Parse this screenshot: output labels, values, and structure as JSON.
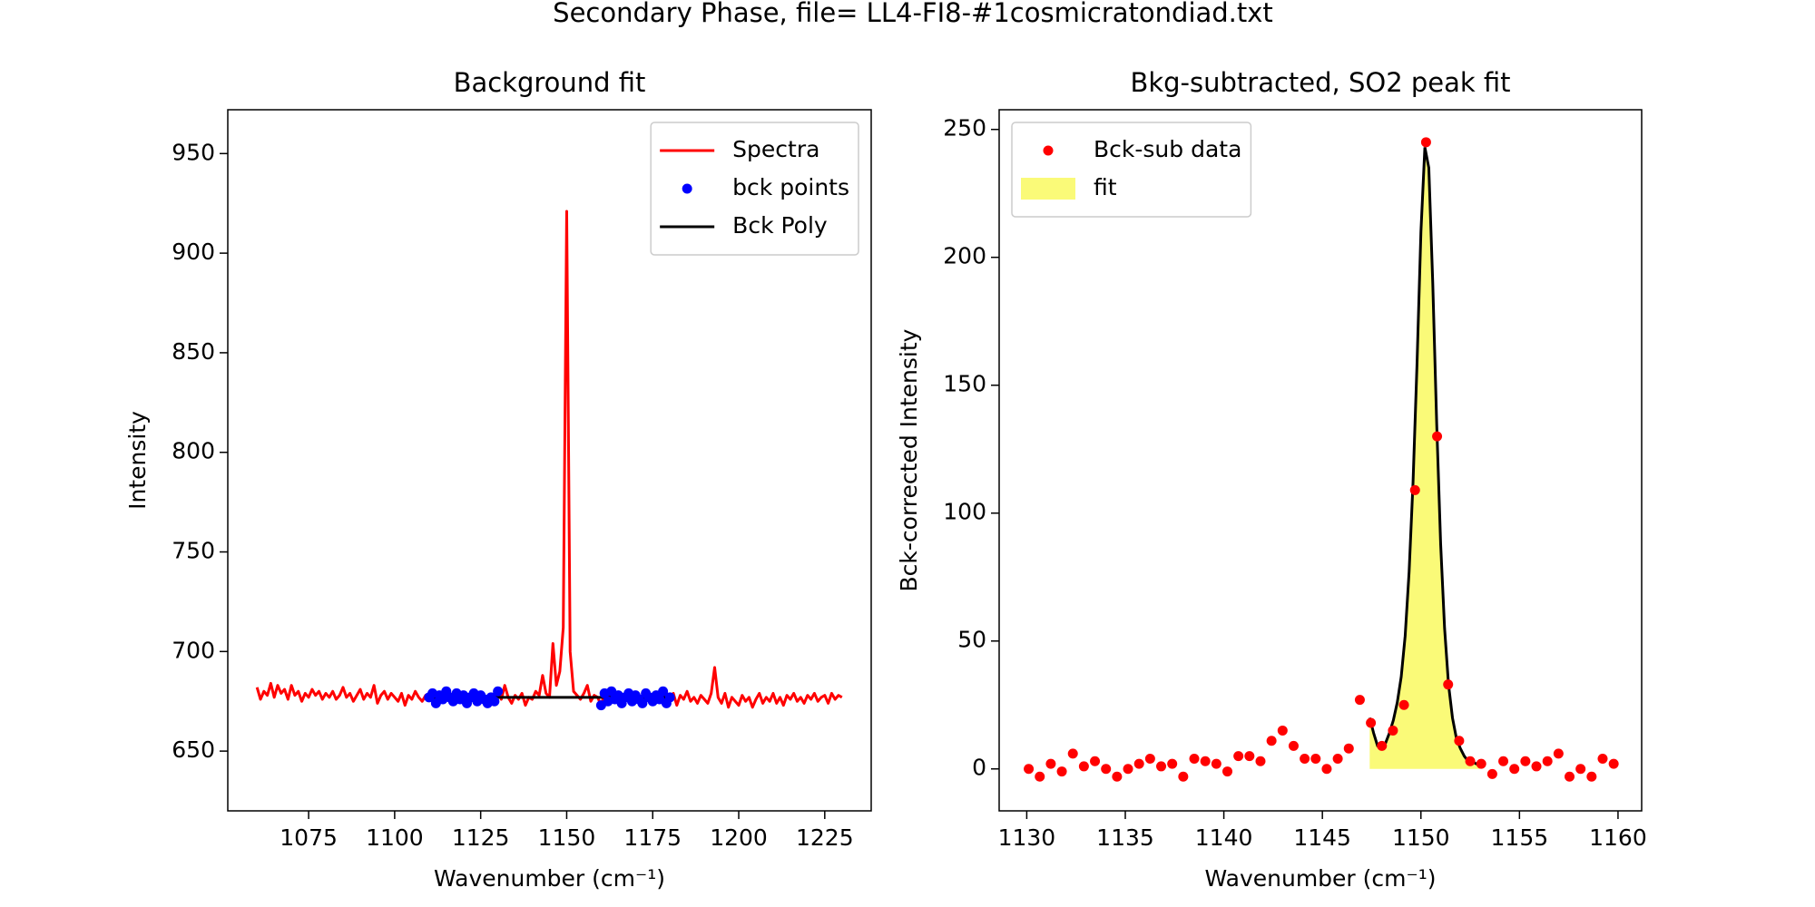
{
  "title": "Secondary Phase, file= LL4-FI8-#1cosmicratondiad.txt",
  "chart_data": [
    {
      "type": "line",
      "title": "Background fit",
      "xlabel": "Wavenumber (cm⁻¹)",
      "ylabel": "Intensity",
      "xlim": [
        1051.5,
        1238.5
      ],
      "ylim": [
        620,
        972
      ],
      "xticks": [
        1075,
        1100,
        1125,
        1150,
        1175,
        1200,
        1225
      ],
      "yticks": [
        650,
        700,
        750,
        800,
        850,
        900,
        950
      ],
      "grid": false,
      "legend": "upper right",
      "series": [
        {
          "name": "Spectra",
          "type": "line",
          "color": "#ff0000",
          "x": [
            1060,
            1061,
            1062,
            1063,
            1064,
            1065,
            1066,
            1067,
            1068,
            1069,
            1070,
            1071,
            1072,
            1073,
            1074,
            1075,
            1076,
            1077,
            1078,
            1079,
            1080,
            1081,
            1082,
            1083,
            1084,
            1085,
            1086,
            1087,
            1088,
            1089,
            1090,
            1091,
            1092,
            1093,
            1094,
            1095,
            1096,
            1097,
            1098,
            1099,
            1100,
            1101,
            1102,
            1103,
            1104,
            1105,
            1106,
            1107,
            1108,
            1109,
            1110,
            1111,
            1112,
            1113,
            1114,
            1115,
            1116,
            1117,
            1118,
            1119,
            1120,
            1121,
            1122,
            1123,
            1124,
            1125,
            1126,
            1127,
            1128,
            1129,
            1130,
            1131,
            1132,
            1133,
            1134,
            1135,
            1136,
            1137,
            1138,
            1139,
            1140,
            1141,
            1142,
            1143,
            1144,
            1145,
            1146,
            1147,
            1148,
            1149,
            1150,
            1151,
            1152,
            1153,
            1154,
            1155,
            1156,
            1157,
            1158,
            1159,
            1160,
            1161,
            1162,
            1163,
            1164,
            1165,
            1166,
            1167,
            1168,
            1169,
            1170,
            1171,
            1172,
            1173,
            1174,
            1175,
            1176,
            1177,
            1178,
            1179,
            1180,
            1181,
            1182,
            1183,
            1184,
            1185,
            1186,
            1187,
            1188,
            1189,
            1190,
            1191,
            1192,
            1193,
            1194,
            1195,
            1196,
            1197,
            1198,
            1199,
            1200,
            1201,
            1202,
            1203,
            1204,
            1205,
            1206,
            1207,
            1208,
            1209,
            1210,
            1211,
            1212,
            1213,
            1214,
            1215,
            1216,
            1217,
            1218,
            1219,
            1220,
            1221,
            1222,
            1223,
            1224,
            1225,
            1226,
            1227,
            1228,
            1229,
            1230
          ],
          "values": [
            682,
            676,
            680,
            678,
            684,
            677,
            683,
            679,
            681,
            676,
            683,
            678,
            680,
            675,
            679,
            677,
            681,
            678,
            680,
            676,
            679,
            677,
            680,
            676,
            678,
            682,
            677,
            679,
            675,
            678,
            681,
            676,
            679,
            677,
            683,
            674,
            678,
            680,
            676,
            679,
            677,
            675,
            679,
            673,
            678,
            676,
            680,
            677,
            675,
            678,
            677,
            679,
            674,
            678,
            676,
            680,
            677,
            675,
            679,
            676,
            678,
            674,
            677,
            679,
            675,
            678,
            676,
            674,
            677,
            675,
            680,
            676,
            683,
            677,
            674,
            678,
            676,
            679,
            673,
            677,
            676,
            680,
            678,
            688,
            679,
            677,
            704,
            683,
            690,
            712,
            921,
            700,
            680,
            678,
            676,
            679,
            683,
            675,
            678,
            677,
            673,
            679,
            675,
            680,
            676,
            678,
            674,
            677,
            679,
            675,
            678,
            676,
            674,
            679,
            677,
            675,
            678,
            676,
            680,
            674,
            677,
            679,
            673,
            678,
            676,
            680,
            675,
            677,
            674,
            678,
            676,
            674,
            679,
            692,
            677,
            674,
            679,
            672,
            677,
            675,
            673,
            678,
            675,
            677,
            672,
            676,
            679,
            674,
            677,
            675,
            679,
            674,
            677,
            673,
            678,
            676,
            679,
            675,
            677,
            674,
            678,
            676,
            679,
            675,
            677,
            678,
            674,
            679,
            676,
            678,
            677
          ]
        },
        {
          "name": "bck points",
          "type": "scatter",
          "color": "#0000ff",
          "x": [
            1110,
            1111,
            1112,
            1113,
            1114,
            1115,
            1116,
            1117,
            1118,
            1119,
            1120,
            1121,
            1122,
            1123,
            1124,
            1125,
            1126,
            1127,
            1128,
            1129,
            1130,
            1160,
            1161,
            1162,
            1163,
            1164,
            1165,
            1166,
            1167,
            1168,
            1169,
            1170,
            1171,
            1172,
            1173,
            1174,
            1175,
            1176,
            1177,
            1178,
            1179,
            1180
          ],
          "values": [
            677,
            679,
            674,
            678,
            676,
            680,
            677,
            675,
            679,
            676,
            678,
            674,
            677,
            679,
            675,
            678,
            676,
            674,
            677,
            675,
            680,
            673,
            679,
            675,
            680,
            676,
            678,
            674,
            677,
            679,
            675,
            678,
            676,
            674,
            679,
            677,
            675,
            678,
            676,
            680,
            674,
            677
          ]
        },
        {
          "name": "Bck Poly",
          "type": "line",
          "color": "#000000",
          "x": [
            1110,
            1180
          ],
          "values": [
            677,
            677
          ]
        }
      ]
    },
    {
      "type": "scatter",
      "title": "Bkg-subtracted, SO2 peak fit",
      "xlabel": "Wavenumber (cm⁻¹)",
      "ylabel": "Bck-corrected Intensity",
      "xlim": [
        1128.6,
        1161.2
      ],
      "ylim": [
        -16.4,
        257.7
      ],
      "xticks": [
        1130,
        1135,
        1140,
        1145,
        1150,
        1155,
        1160
      ],
      "yticks": [
        0,
        50,
        100,
        150,
        200,
        250
      ],
      "grid": false,
      "legend": "upper left",
      "series": [
        {
          "name": "Bck-sub data",
          "type": "scatter",
          "color": "#ff0000",
          "x": [
            1130.1,
            1130.66,
            1131.22,
            1131.78,
            1132.34,
            1132.9,
            1133.46,
            1134.02,
            1134.58,
            1135.14,
            1135.7,
            1136.26,
            1136.82,
            1137.38,
            1137.94,
            1138.5,
            1139.06,
            1139.62,
            1140.18,
            1140.74,
            1141.3,
            1141.86,
            1142.42,
            1142.98,
            1143.54,
            1144.1,
            1144.66,
            1145.22,
            1145.78,
            1146.34,
            1146.9,
            1147.46,
            1148.02,
            1148.58,
            1149.14,
            1149.7,
            1150.26,
            1150.82,
            1151.38,
            1151.94,
            1152.5,
            1153.06,
            1153.62,
            1154.18,
            1154.74,
            1155.3,
            1155.86,
            1156.42,
            1156.98,
            1157.54,
            1158.1,
            1158.66,
            1159.22,
            1159.78
          ],
          "values": [
            0,
            -3,
            2,
            -1,
            6,
            1,
            3,
            0,
            -3,
            0,
            2,
            4,
            1,
            2,
            -3,
            4,
            3,
            2,
            -1,
            5,
            5,
            3,
            11,
            15,
            9,
            4,
            4,
            0,
            4,
            8,
            27,
            18,
            9,
            15,
            25,
            109,
            245,
            130,
            33,
            11,
            3,
            2,
            -2,
            3,
            0,
            3,
            1,
            3,
            6,
            -3,
            0,
            -3,
            4,
            2
          ]
        },
        {
          "name": "fit",
          "type": "area",
          "color": "#fafa78",
          "edgecolor": "#000000",
          "x": [
            1147.4,
            1147.6,
            1147.8,
            1148.0,
            1148.2,
            1148.4,
            1148.6,
            1148.8,
            1149.0,
            1149.2,
            1149.4,
            1149.6,
            1149.8,
            1150.0,
            1150.2,
            1150.4,
            1150.6,
            1150.8,
            1151.0,
            1151.2,
            1151.4,
            1151.6,
            1151.8,
            1152.0,
            1152.2,
            1152.4,
            1152.6,
            1152.8,
            1153.0
          ],
          "values": [
            20,
            14,
            9,
            8,
            10,
            14,
            19,
            26,
            36,
            52,
            77,
            112,
            158,
            210,
            243,
            235,
            190,
            135,
            88,
            55,
            33,
            20,
            12,
            8,
            5,
            3,
            3,
            2,
            2
          ]
        }
      ]
    }
  ]
}
